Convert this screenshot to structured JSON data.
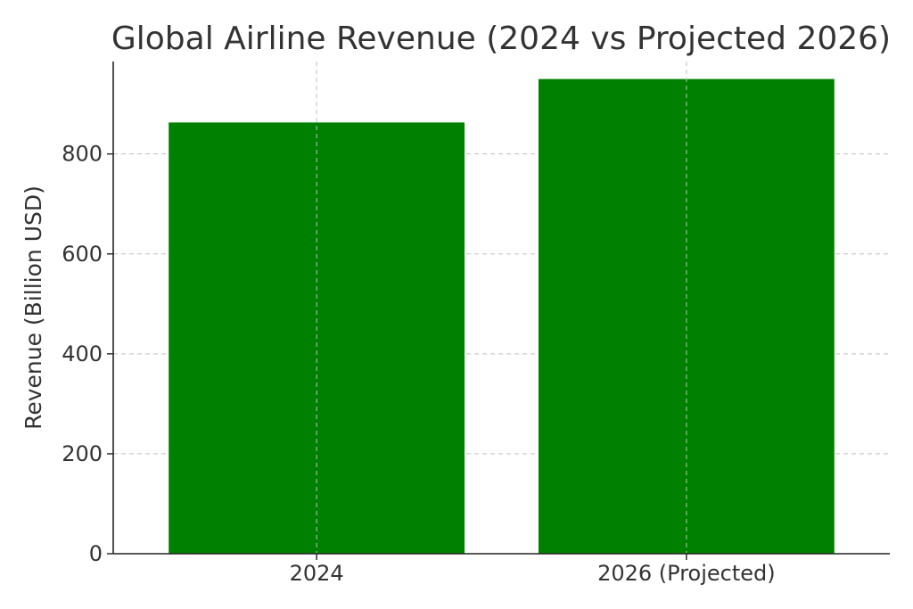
{
  "chart_data": {
    "type": "bar",
    "title": "Global Airline Revenue (2024 vs Projected 2026)",
    "xlabel": "",
    "ylabel": "Revenue (Billion USD)",
    "categories": [
      "2024",
      "2026 (Projected)"
    ],
    "values": [
      863,
      950
    ],
    "ylim": [
      0,
      985
    ],
    "yticks": [
      0,
      200,
      400,
      600,
      800
    ],
    "grid": true,
    "bar_color": "#008000"
  }
}
